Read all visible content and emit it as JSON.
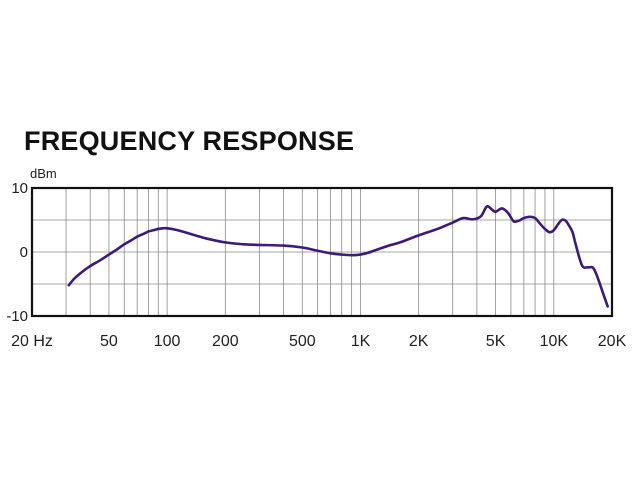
{
  "chart_data": {
    "type": "line",
    "title": "FREQUENCY RESPONSE",
    "xlabel": "",
    "ylabel": "dBm",
    "x_scale": "log",
    "xlim": [
      20,
      20000
    ],
    "ylim": [
      -10,
      10
    ],
    "grid": true,
    "legend": "none",
    "x_ticks": [
      {
        "value": 20,
        "label": "20 Hz"
      },
      {
        "value": 50,
        "label": "50"
      },
      {
        "value": 100,
        "label": "100"
      },
      {
        "value": 200,
        "label": "200"
      },
      {
        "value": 500,
        "label": "500"
      },
      {
        "value": 1000,
        "label": "1K"
      },
      {
        "value": 2000,
        "label": "2K"
      },
      {
        "value": 5000,
        "label": "5K"
      },
      {
        "value": 10000,
        "label": "10K"
      },
      {
        "value": 20000,
        "label": "20K"
      }
    ],
    "y_ticks": [
      {
        "value": 10,
        "label": "10"
      },
      {
        "value": 0,
        "label": "0"
      },
      {
        "value": -10,
        "label": "-10"
      }
    ],
    "series": [
      {
        "color": "#3d1a78",
        "x": [
          31,
          33,
          36,
          40,
          45,
          50,
          55,
          60,
          65,
          70,
          75,
          80,
          85,
          90,
          95,
          100,
          110,
          120,
          140,
          160,
          200,
          250,
          300,
          400,
          500,
          600,
          700,
          800,
          900,
          1000,
          1100,
          1200,
          1400,
          1600,
          2000,
          2500,
          3000,
          3400,
          3800,
          4200,
          4500,
          4800,
          5000,
          5400,
          5800,
          6200,
          6600,
          7000,
          7500,
          8000,
          8500,
          9000,
          9500,
          10000,
          10500,
          11000,
          11500,
          12000,
          12500,
          13000,
          14000,
          15000,
          16000,
          17000,
          18000,
          19000
        ],
        "y": [
          -5.2,
          -4.2,
          -3.2,
          -2.2,
          -1.3,
          -0.4,
          0.4,
          1.2,
          1.8,
          2.4,
          2.8,
          3.2,
          3.4,
          3.6,
          3.7,
          3.7,
          3.5,
          3.2,
          2.6,
          2.1,
          1.5,
          1.2,
          1.1,
          1.0,
          0.7,
          0.2,
          -0.2,
          -0.4,
          -0.5,
          -0.4,
          -0.1,
          0.3,
          1.0,
          1.5,
          2.6,
          3.6,
          4.6,
          5.3,
          5.1,
          5.6,
          7.1,
          6.6,
          6.3,
          6.8,
          6.1,
          4.8,
          4.9,
          5.3,
          5.5,
          5.3,
          4.4,
          3.6,
          3.1,
          3.4,
          4.3,
          5.0,
          4.9,
          4.1,
          3.1,
          1.1,
          -2.1,
          -2.4,
          -2.5,
          -4.3,
          -6.5,
          -8.5
        ]
      }
    ]
  }
}
